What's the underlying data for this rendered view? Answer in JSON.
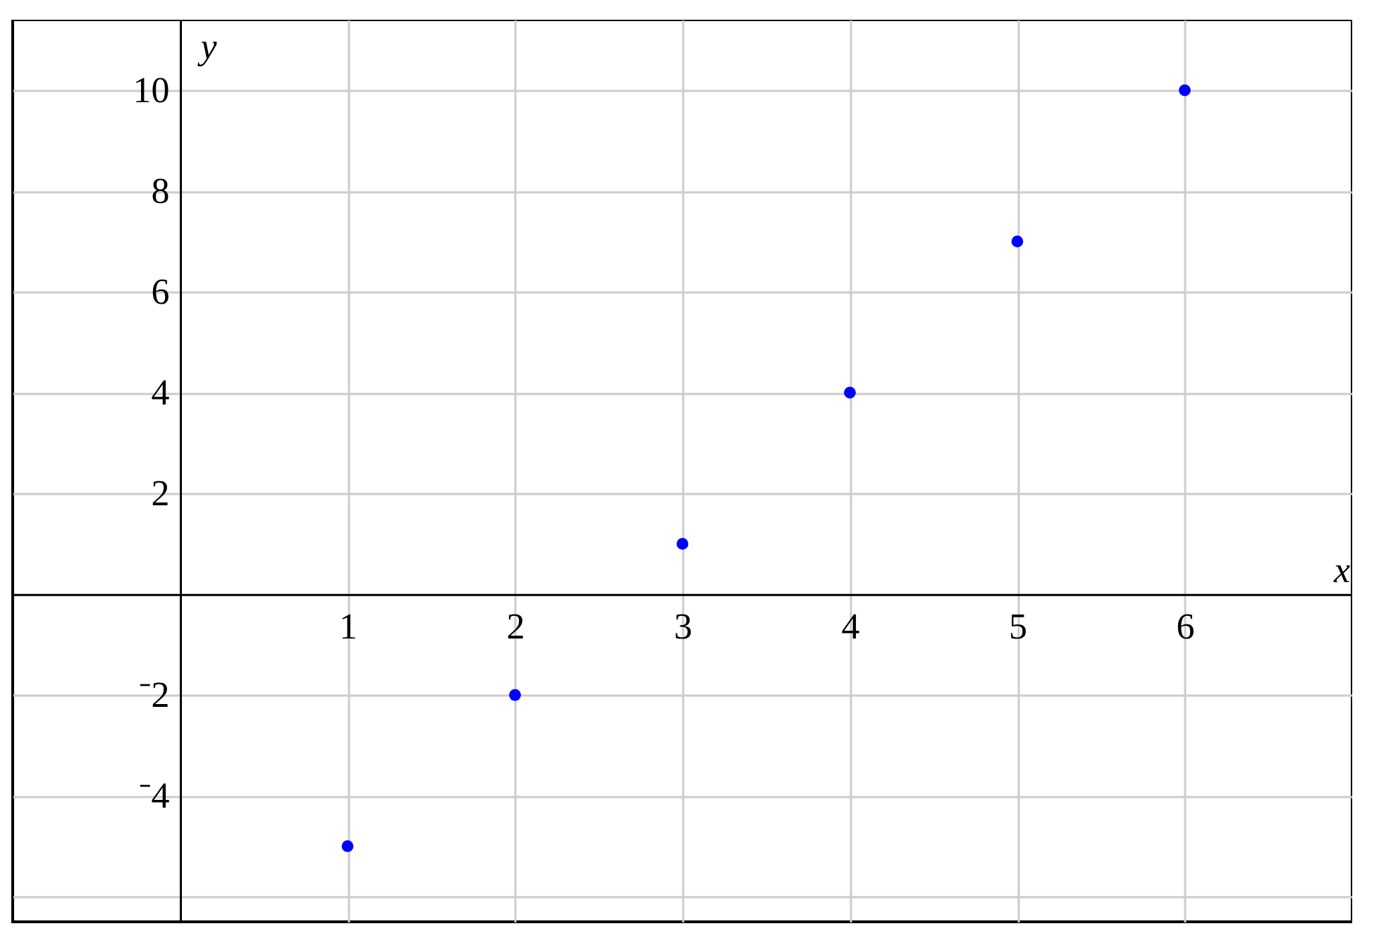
{
  "chart_data": {
    "type": "scatter",
    "xlabel": "x",
    "ylabel": "y",
    "x": [
      1,
      2,
      3,
      4,
      5,
      6
    ],
    "series": [
      {
        "color": "#0000ff",
        "values": [
          -5,
          -2,
          1,
          4,
          7,
          10
        ]
      }
    ],
    "xlim": [
      -1,
      7
    ],
    "ylim": [
      -6.5,
      11.4
    ],
    "xticks": [
      1,
      2,
      3,
      4,
      5,
      6
    ],
    "yticks": [
      {
        "value": -6,
        "label": null
      },
      {
        "value": -4,
        "label": "⁻4"
      },
      {
        "value": -2,
        "label": "⁻2"
      },
      2,
      4,
      6,
      8,
      10
    ],
    "grid": true,
    "marker": "circle"
  }
}
